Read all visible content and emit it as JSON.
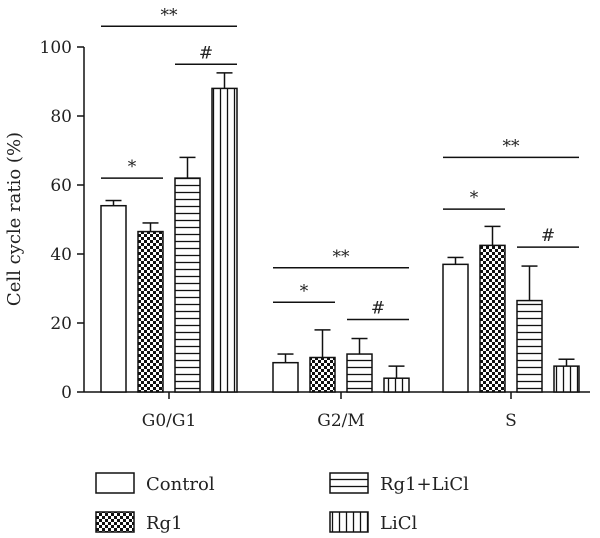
{
  "chart_data": {
    "type": "bar",
    "ylabel": "Cell cycle ratio (%)",
    "ylim": [
      0,
      100
    ],
    "yticks": [
      0,
      20,
      40,
      60,
      80,
      100
    ],
    "categories": [
      "G0/G1",
      "G2/M",
      "S"
    ],
    "series": [
      {
        "name": "Control",
        "pattern": "empty",
        "values": [
          54,
          8.5,
          37
        ],
        "errors": [
          1.5,
          2.5,
          2
        ]
      },
      {
        "name": "Rg1",
        "pattern": "checker",
        "values": [
          46.5,
          10,
          42.5
        ],
        "errors": [
          2.5,
          8,
          5.5
        ]
      },
      {
        "name": "Rg1+LiCl",
        "pattern": "hlines",
        "values": [
          62,
          11,
          26.5
        ],
        "errors": [
          6,
          4.5,
          10
        ]
      },
      {
        "name": "LiCl",
        "pattern": "vlines",
        "values": [
          88,
          4,
          7.5
        ],
        "errors": [
          4.5,
          3.5,
          2
        ]
      }
    ],
    "significance": [
      {
        "group": 0,
        "from": 0,
        "to": 3,
        "label": "**",
        "y": 106
      },
      {
        "group": 0,
        "from": 0,
        "to": 1,
        "label": "*",
        "y": 62
      },
      {
        "group": 0,
        "from": 2,
        "to": 3,
        "label": "#",
        "y": 95
      },
      {
        "group": 1,
        "from": 0,
        "to": 3,
        "label": "**",
        "y": 36
      },
      {
        "group": 1,
        "from": 0,
        "to": 1,
        "label": "*",
        "y": 26
      },
      {
        "group": 1,
        "from": 2,
        "to": 3,
        "label": "#",
        "y": 21
      },
      {
        "group": 2,
        "from": 0,
        "to": 3,
        "label": "**",
        "y": 68
      },
      {
        "group": 2,
        "from": 0,
        "to": 1,
        "label": "*",
        "y": 53
      },
      {
        "group": 2,
        "from": 2,
        "to": 3,
        "label": "#",
        "y": 42
      }
    ],
    "legend": {
      "position": "bottom",
      "columns": 2
    }
  }
}
